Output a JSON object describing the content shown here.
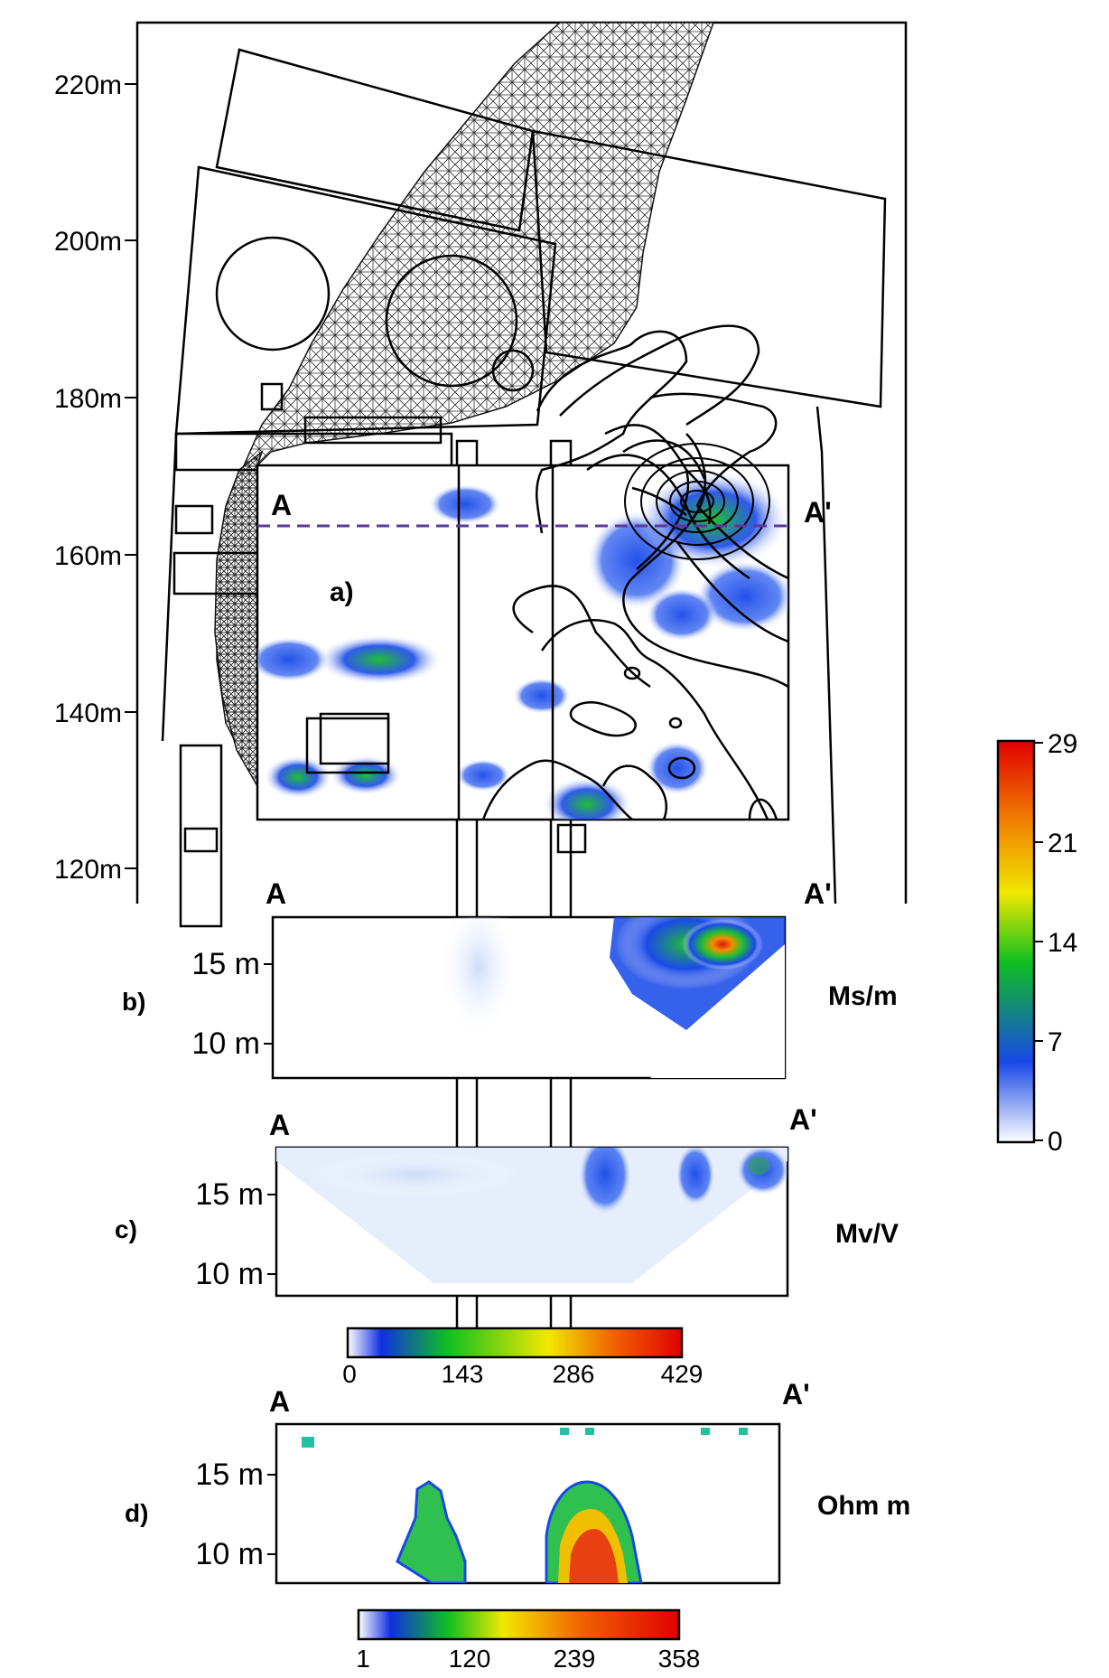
{
  "map": {
    "y_ticks": [
      "220m",
      "200m",
      "180m",
      "160m",
      "140m",
      "120m"
    ],
    "panel_label": "a)",
    "profile_start": "A",
    "profile_end": "A'"
  },
  "colorbar_main": {
    "ticks": [
      "29",
      "21",
      "14",
      "7",
      "0"
    ],
    "range": [
      0,
      29
    ],
    "colors": [
      "#ffffff",
      "#1848e8",
      "#10c020",
      "#f0e800",
      "#f08000",
      "#e00000"
    ]
  },
  "section_b": {
    "label": "b)",
    "start": "A",
    "end": "A'",
    "depth_ticks": [
      "15 m",
      "10 m"
    ],
    "unit": "Ms/m"
  },
  "section_c": {
    "label": "c)",
    "start": "A",
    "end": "A'",
    "depth_ticks": [
      "15 m",
      "10 m"
    ],
    "unit": "Mv/V"
  },
  "colorbar_c": {
    "ticks": [
      "0",
      "143",
      "286",
      "429"
    ],
    "range": [
      0,
      429
    ]
  },
  "section_d": {
    "label": "d)",
    "start": "A",
    "end": "A'",
    "depth_ticks": [
      "15 m",
      "10 m"
    ],
    "unit": "Ohm m"
  },
  "colorbar_d": {
    "ticks": [
      "1",
      "120",
      "239",
      "358"
    ],
    "range": [
      1,
      358
    ]
  }
}
